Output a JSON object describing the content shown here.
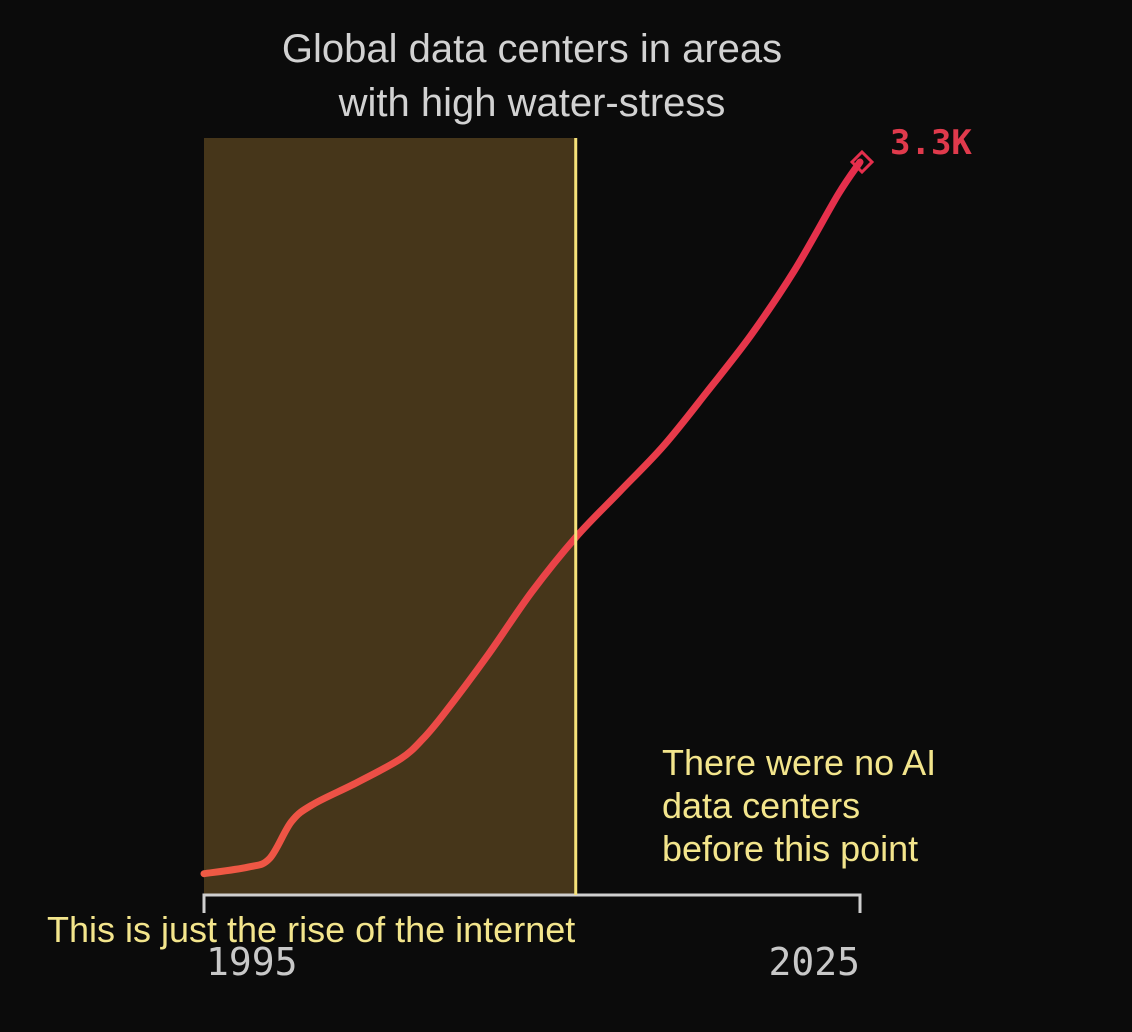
{
  "chart_data": {
    "type": "line",
    "title_lines": [
      "Global data centers in areas",
      "with high water-stress"
    ],
    "x_ticks": [
      "1995",
      "2025"
    ],
    "x_range": [
      1995,
      2025
    ],
    "y_range": [
      0,
      3300
    ],
    "y_unit": "data centers",
    "end_label": "3.3K",
    "end_value": 3300,
    "series": [
      {
        "name": "Global data centers in areas with high water-stress",
        "x": [
          1995,
          1997,
          1998,
          1999,
          2000,
          2002,
          2004,
          2005,
          2006,
          2008,
          2010,
          2012,
          2014,
          2016,
          2018,
          2020,
          2022,
          2024,
          2025
        ],
        "y": [
          20,
          50,
          90,
          260,
          340,
          440,
          550,
          640,
          760,
          1030,
          1320,
          1570,
          1780,
          1990,
          2240,
          2500,
          2800,
          3150,
          3300
        ]
      }
    ],
    "highlight": {
      "x_start": 1995,
      "x_end": 2012
    },
    "annotations": {
      "divider_note": [
        "There were no AI",
        "data centers",
        "before this point"
      ],
      "bottom_note": "This is just the rise of the internet"
    }
  },
  "colors": {
    "background": "#0b0b0b",
    "highlight_fill": "#46361a",
    "divider": "#f6e27a",
    "line_start": "#ef5a44",
    "line_end": "#e52e4c",
    "annotation_text": "#f3e58c"
  }
}
